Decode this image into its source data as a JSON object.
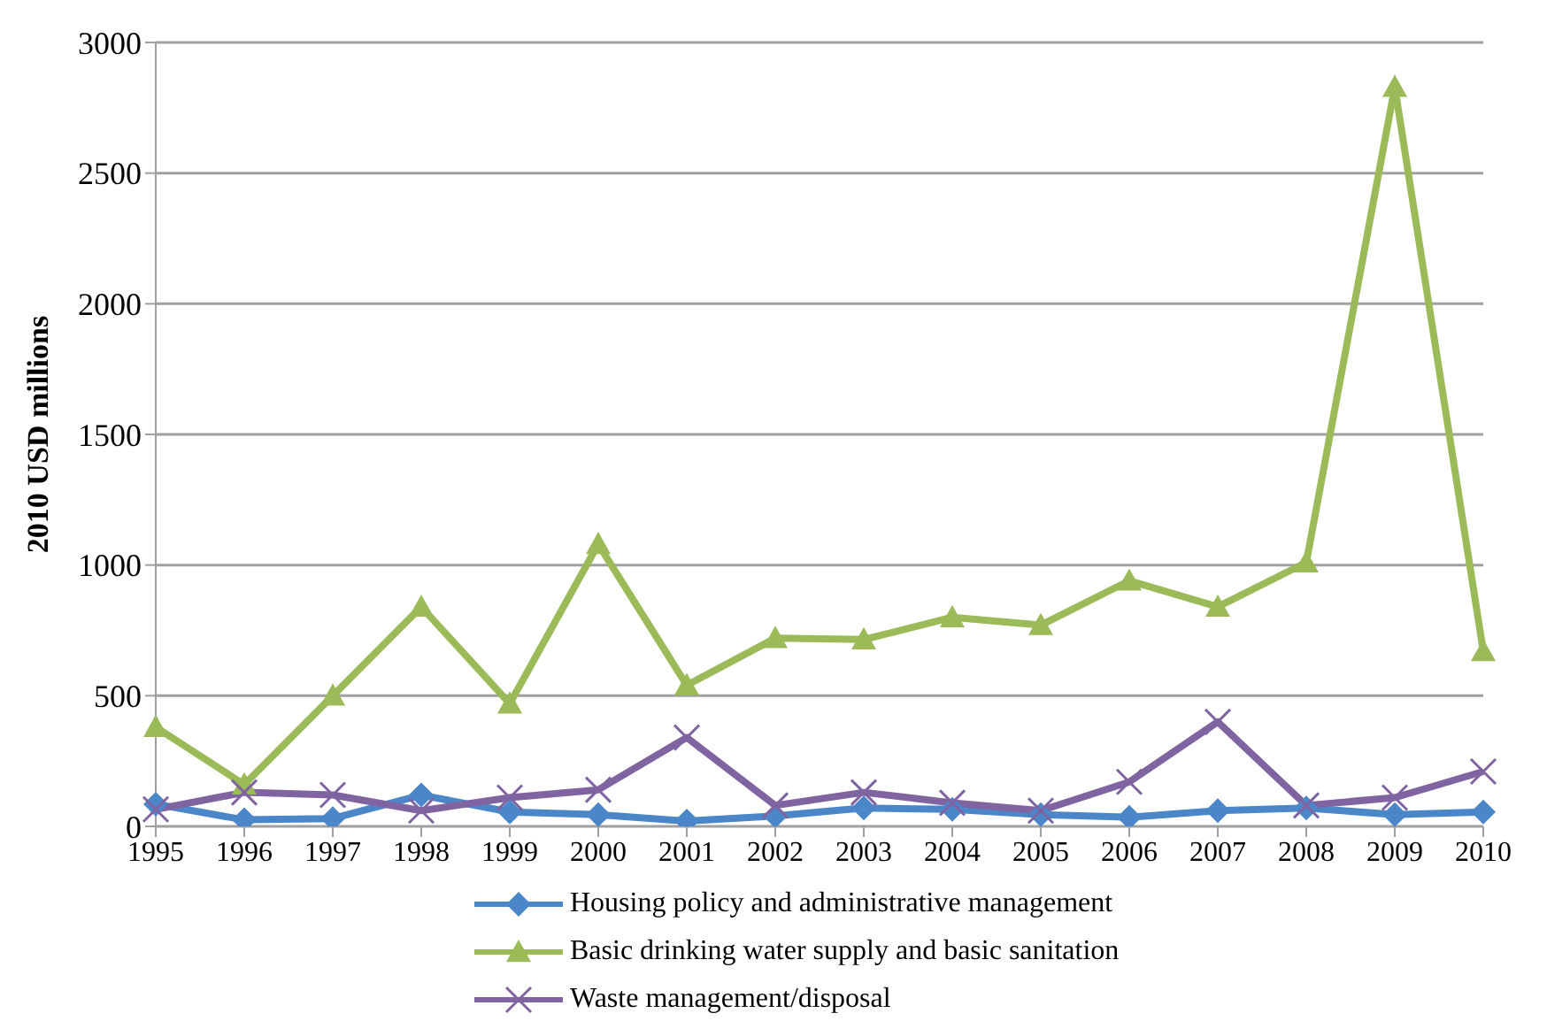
{
  "chart_data": {
    "type": "line",
    "ylabel": "2010 USD millions",
    "categories": [
      "1995",
      "1996",
      "1997",
      "1998",
      "1999",
      "2000",
      "2001",
      "2002",
      "2003",
      "2004",
      "2005",
      "2006",
      "2007",
      "2008",
      "2009",
      "2010"
    ],
    "series": [
      {
        "name": "Housing policy and administrative management",
        "color": "#4a86c8",
        "marker": "diamond",
        "values": [
          85,
          25,
          30,
          120,
          55,
          45,
          20,
          40,
          70,
          65,
          45,
          35,
          60,
          70,
          45,
          55
        ]
      },
      {
        "name": "Basic drinking water supply and basic sanitation",
        "color": "#9bbb59",
        "marker": "triangle",
        "values": [
          380,
          160,
          500,
          840,
          470,
          1080,
          540,
          720,
          715,
          800,
          770,
          940,
          840,
          1010,
          2830,
          670
        ]
      },
      {
        "name": "Waste management/disposal",
        "color": "#8064a2",
        "marker": "cross",
        "values": [
          65,
          130,
          120,
          60,
          110,
          140,
          340,
          80,
          130,
          90,
          60,
          170,
          400,
          80,
          110,
          210
        ]
      }
    ],
    "ylim": [
      0,
      3000
    ],
    "yticks": [
      0,
      500,
      1000,
      1500,
      2000,
      2500,
      3000
    ],
    "grid": "y",
    "legend": "bottom",
    "line_style": "solid"
  }
}
